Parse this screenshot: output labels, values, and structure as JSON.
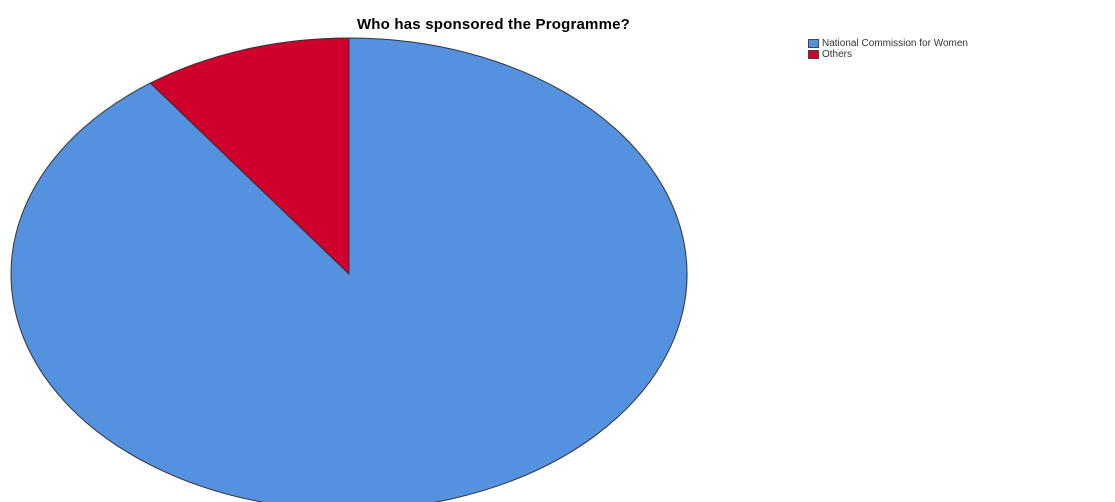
{
  "chart_data": {
    "type": "pie",
    "title": "Who has sponsored the Programme?",
    "slices": [
      {
        "label": "National Commission for Women",
        "value": 90,
        "color": "#5491DF"
      },
      {
        "label": "Others",
        "value": 10,
        "color": "#D0002C"
      }
    ],
    "legend_position": "top-right",
    "start_angle_deg": 0,
    "direction": "clockwise"
  }
}
